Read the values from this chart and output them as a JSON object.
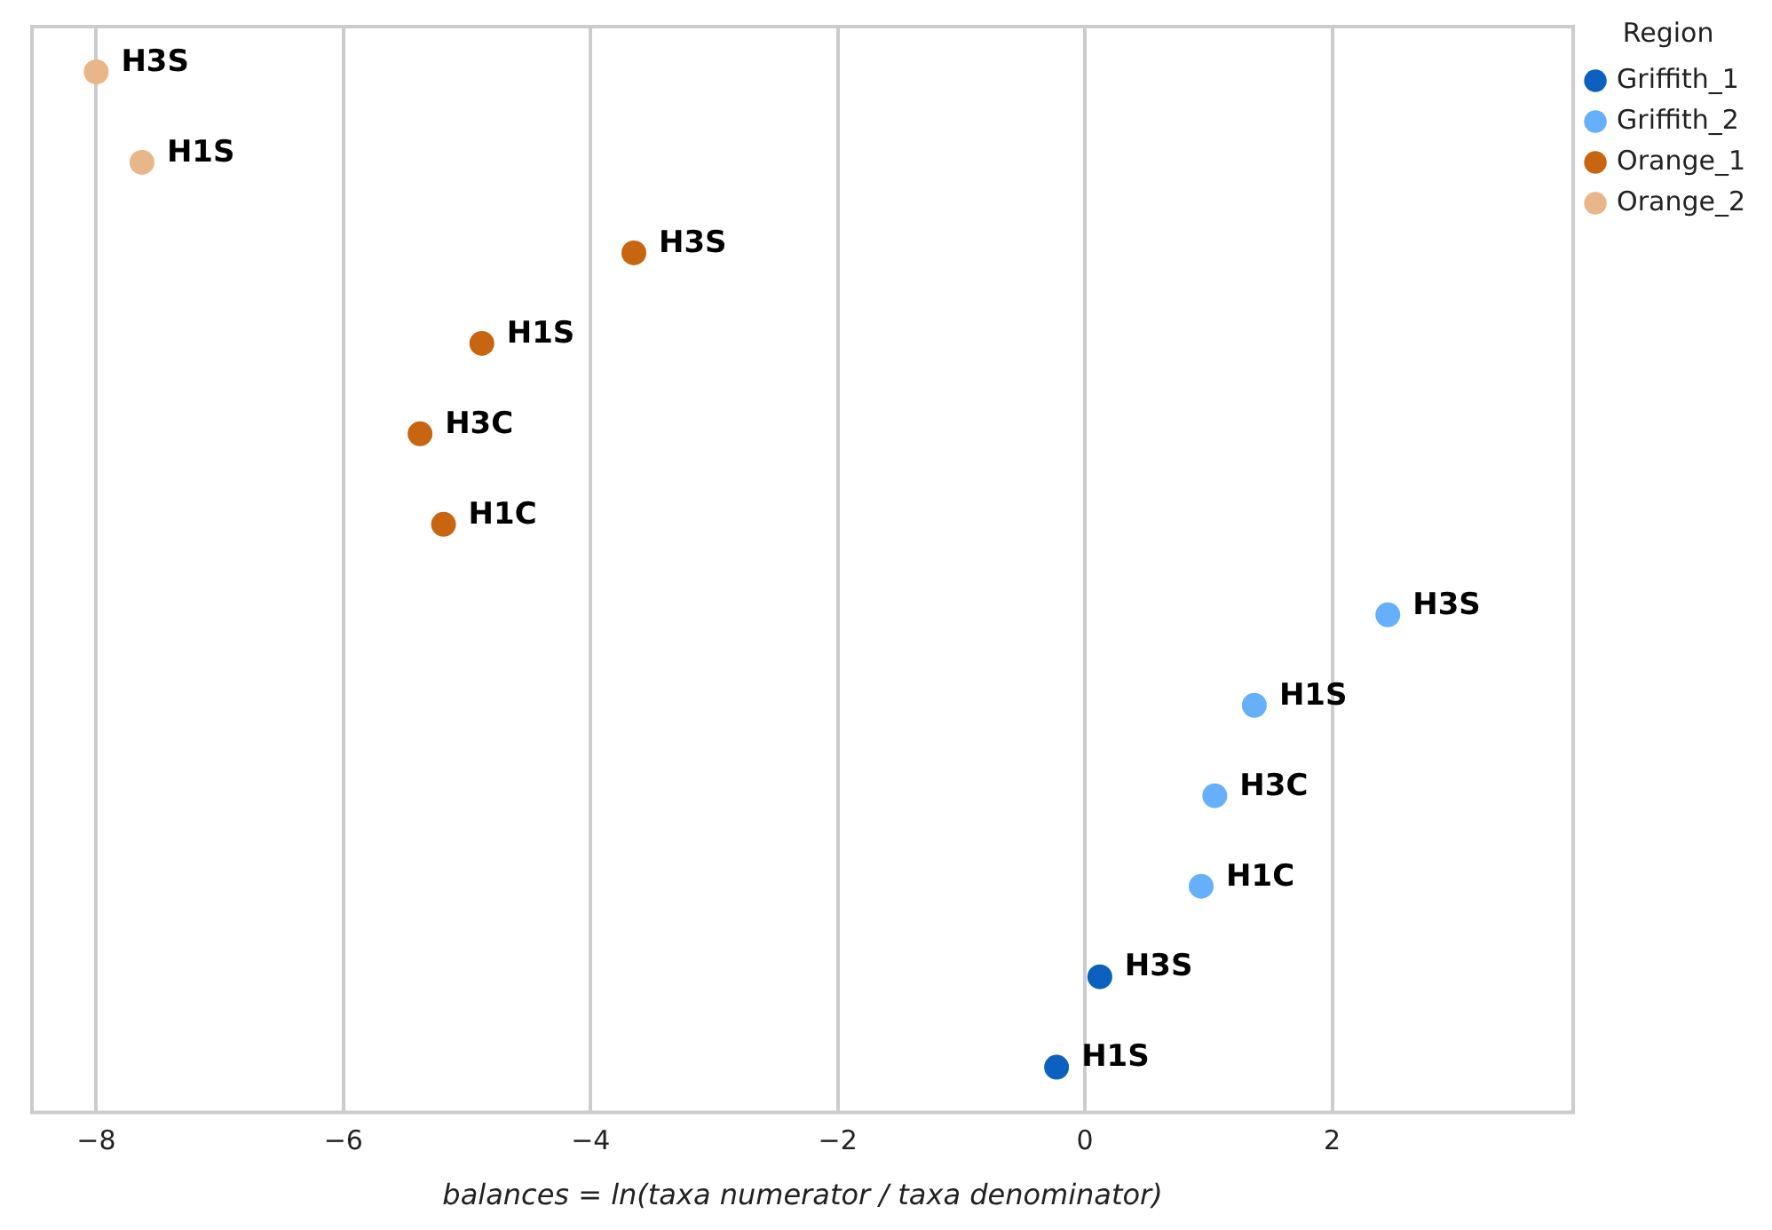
{
  "chart_data": {
    "type": "scatter",
    "orientation": "horizontal",
    "xlabel": "balances = ln(taxa numerator / taxa denominator)",
    "legend_title": "Region",
    "categories": [
      null,
      null,
      null,
      null,
      null,
      null,
      null,
      null,
      null,
      null,
      null,
      null
    ],
    "series": [
      {
        "name": "Griffith_1",
        "color": "#0b60c0",
        "values": [
          null,
          null,
          null,
          null,
          null,
          null,
          null,
          null,
          null,
          null,
          0.12,
          -0.23
        ],
        "value_labels": [
          null,
          null,
          null,
          null,
          null,
          null,
          null,
          null,
          null,
          null,
          "H3S",
          "H1S"
        ]
      },
      {
        "name": "Griffith_2",
        "color": "#66b0fb",
        "values": [
          null,
          null,
          null,
          null,
          null,
          null,
          2.45,
          1.37,
          1.05,
          0.94,
          null,
          null
        ],
        "value_labels": [
          null,
          null,
          null,
          null,
          null,
          null,
          "H3S",
          "H1S",
          "H3C",
          "H1C",
          null,
          null
        ]
      },
      {
        "name": "Orange_1",
        "color": "#c86510",
        "values": [
          null,
          null,
          -3.65,
          -4.88,
          -5.38,
          -5.19,
          null,
          null,
          null,
          null,
          null,
          null
        ],
        "value_labels": [
          null,
          null,
          "H3S",
          "H1S",
          "H3C",
          "H1C",
          null,
          null,
          null,
          null,
          null,
          null
        ]
      },
      {
        "name": "Orange_2",
        "color": "#e8b688",
        "values": [
          -8.0,
          -7.63,
          null,
          null,
          null,
          null,
          null,
          null,
          null,
          null,
          null,
          null
        ],
        "value_labels": [
          "H3S",
          "H1S",
          null,
          null,
          null,
          null,
          null,
          null,
          null,
          null,
          null,
          null
        ]
      }
    ],
    "xlim": [
      -8.52,
      3.95
    ],
    "xticks": [
      -8,
      -6,
      -4,
      -2,
      0,
      2
    ],
    "grid": "x",
    "legend": "top right",
    "marker": "circle",
    "tick_labels": "x"
  }
}
